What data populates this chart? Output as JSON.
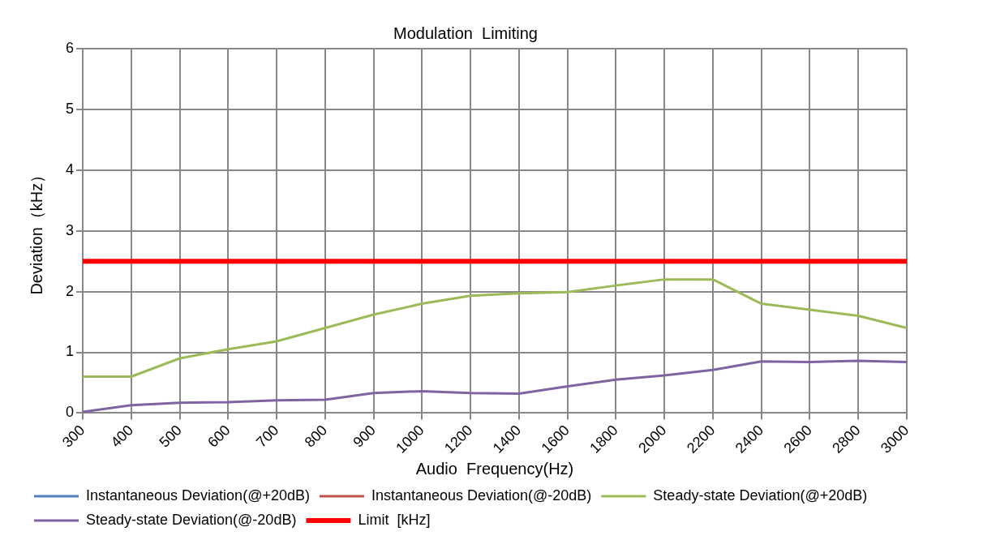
{
  "chart_data": {
    "type": "line",
    "title": "Modulation  Limiting",
    "xlabel": "Audio  Frequency(Hz)",
    "ylabel": "Deviation（kHz）",
    "categories": [
      "300",
      "400",
      "500",
      "600",
      "700",
      "800",
      "900",
      "1000",
      "1200",
      "1400",
      "1600",
      "1800",
      "2000",
      "2200",
      "2400",
      "2600",
      "2800",
      "3000"
    ],
    "series": [
      {
        "name": "Instantaneous Deviation(@+20dB)",
        "color": "#4f81bd",
        "values": [
          null,
          null,
          null,
          null,
          null,
          null,
          null,
          null,
          null,
          null,
          null,
          null,
          null,
          null,
          null,
          null,
          null,
          null
        ]
      },
      {
        "name": "Instantaneous Deviation(@-20dB)",
        "color": "#c0504d",
        "values": [
          null,
          null,
          null,
          null,
          null,
          null,
          null,
          null,
          null,
          null,
          null,
          null,
          null,
          null,
          null,
          null,
          null,
          null
        ]
      },
      {
        "name": "Steady-state Deviation(@+20dB)",
        "color": "#9bbb59",
        "values": [
          0.6,
          0.6,
          0.9,
          1.05,
          1.18,
          1.4,
          1.62,
          1.8,
          1.93,
          1.97,
          1.99,
          2.1,
          2.2,
          2.2,
          1.8,
          1.7,
          1.6,
          1.4
        ]
      },
      {
        "name": "Steady-state Deviation(@-20dB)",
        "color": "#8064a2",
        "values": [
          0.02,
          0.13,
          0.17,
          0.18,
          0.21,
          0.22,
          0.33,
          0.36,
          0.33,
          0.32,
          0.44,
          0.55,
          0.62,
          0.71,
          0.85,
          0.84,
          0.86,
          0.84
        ]
      },
      {
        "name": "Limit  [kHz]",
        "color": "#ff0000",
        "values": [
          2.5,
          2.5,
          2.5,
          2.5,
          2.5,
          2.5,
          2.5,
          2.5,
          2.5,
          2.5,
          2.5,
          2.5,
          2.5,
          2.5,
          2.5,
          2.5,
          2.5,
          2.5
        ]
      }
    ],
    "ylim": [
      0,
      6
    ],
    "yticks": [
      0,
      1,
      2,
      3,
      4,
      5,
      6
    ],
    "grid": true,
    "legend": "bottom",
    "marker": "none",
    "line_style": "solid"
  }
}
